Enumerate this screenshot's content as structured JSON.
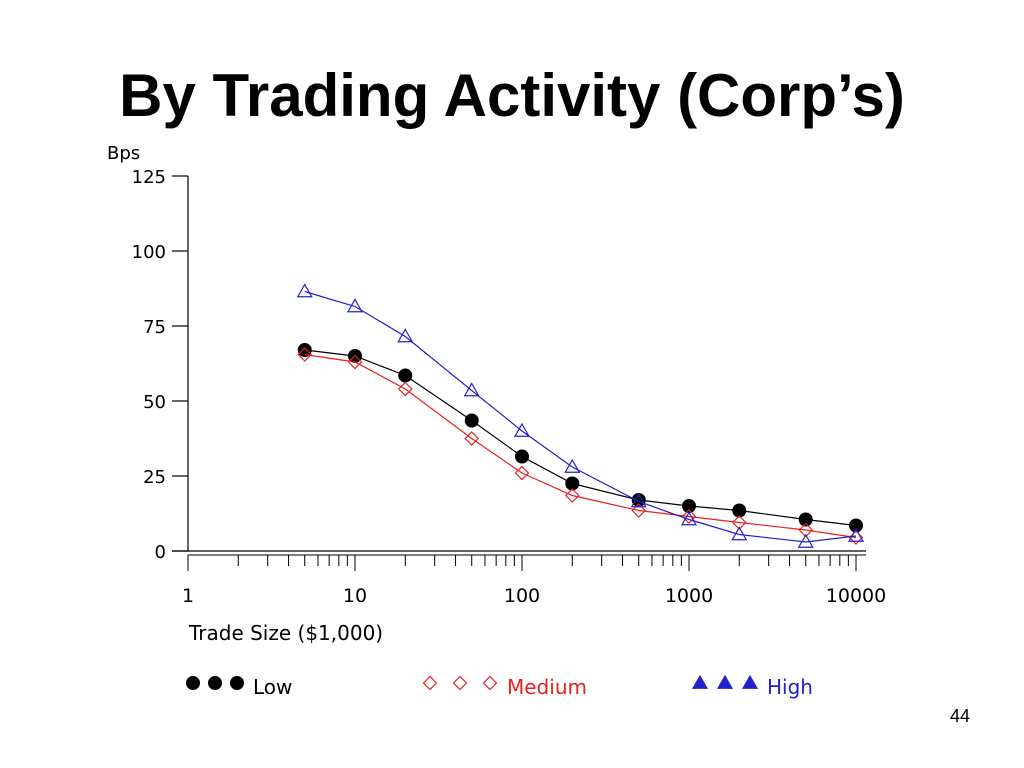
{
  "slide": {
    "title": "By Trading Activity (Corp’s)",
    "page_number": "44"
  },
  "colors": {
    "low": "#000000",
    "medium": "#e8211e",
    "high": "#2222cc",
    "axis": "#000000"
  },
  "chart_data": {
    "type": "line",
    "title": "",
    "xlabel": "Trade Size ($1,000)",
    "ylabel": "Bps",
    "xscale": "log",
    "xlim": [
      1,
      10000
    ],
    "ylim": [
      0,
      125
    ],
    "x_ticks": [
      1,
      10,
      100,
      1000,
      10000
    ],
    "x_tick_labels": [
      "1",
      "10",
      "100",
      "1000",
      "10000"
    ],
    "y_ticks": [
      0,
      25,
      50,
      75,
      100,
      125
    ],
    "y_tick_labels": [
      "0",
      "25",
      "50",
      "75",
      "100",
      "125"
    ],
    "grid": false,
    "legend_position": "bottom",
    "x": [
      5,
      10,
      20,
      50,
      100,
      200,
      500,
      1000,
      2000,
      5000,
      10000
    ],
    "series": [
      {
        "name": "Low",
        "marker": "filled-circle",
        "color": "#000000",
        "values": [
          67,
          65,
          58.5,
          43.5,
          31.5,
          22.5,
          17,
          15,
          13.5,
          10.5,
          8.5
        ]
      },
      {
        "name": "Medium",
        "marker": "open-diamond",
        "color": "#e8211e",
        "values": [
          65.5,
          63,
          54,
          37.5,
          26,
          18.5,
          13.5,
          11.5,
          9.5,
          7,
          4.5
        ]
      },
      {
        "name": "High",
        "marker": "open-triangle",
        "color": "#2222cc",
        "values": [
          86.5,
          81.5,
          71.5,
          53.5,
          40,
          28,
          16.5,
          10.5,
          5.5,
          3,
          5
        ]
      }
    ]
  }
}
